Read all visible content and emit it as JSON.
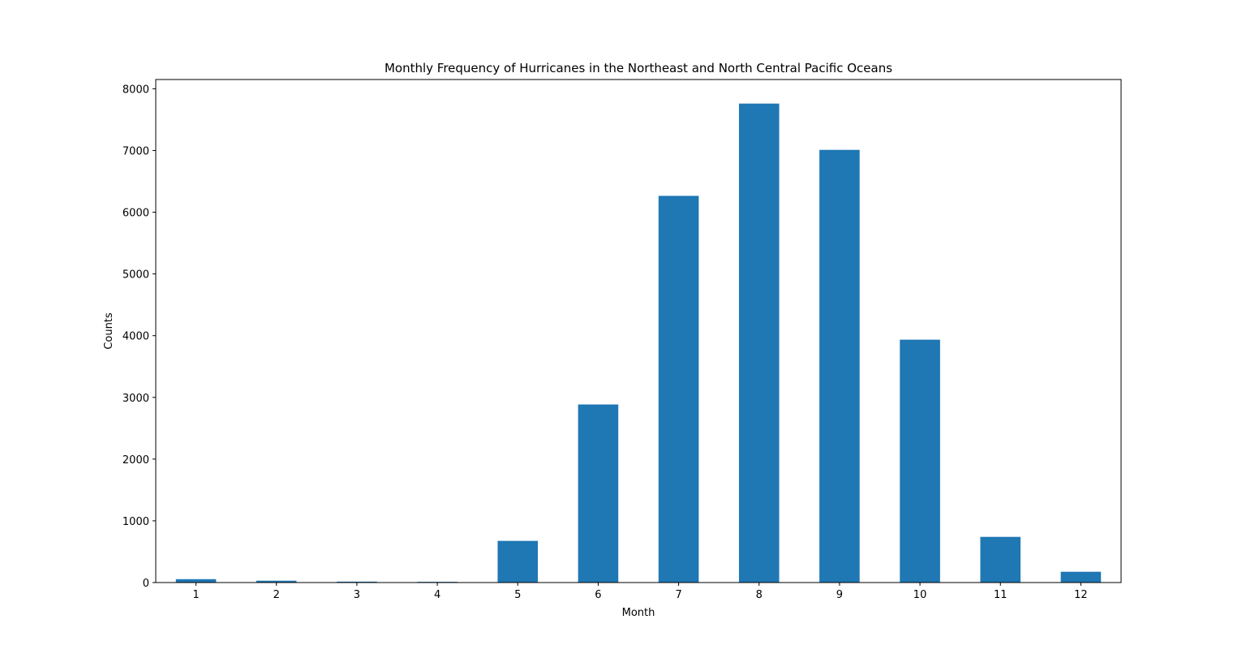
{
  "chart_data": {
    "type": "bar",
    "title": "Monthly Frequency of Hurricanes in the Northeast and North Central Pacific Oceans",
    "xlabel": "Month",
    "ylabel": "Counts",
    "categories": [
      "1",
      "2",
      "3",
      "4",
      "5",
      "6",
      "7",
      "8",
      "9",
      "10",
      "11",
      "12"
    ],
    "values": [
      55,
      30,
      15,
      12,
      675,
      2885,
      6265,
      7760,
      7010,
      3935,
      740,
      175
    ],
    "ylim": [
      0,
      8150
    ],
    "yticks": [
      0,
      1000,
      2000,
      3000,
      4000,
      5000,
      6000,
      7000,
      8000
    ],
    "ytick_labels": [
      "0",
      "1000",
      "2000",
      "3000",
      "4000",
      "5000",
      "6000",
      "7000",
      "8000"
    ],
    "bar_color": "#1f77b4",
    "grid": false,
    "legend": "none"
  }
}
